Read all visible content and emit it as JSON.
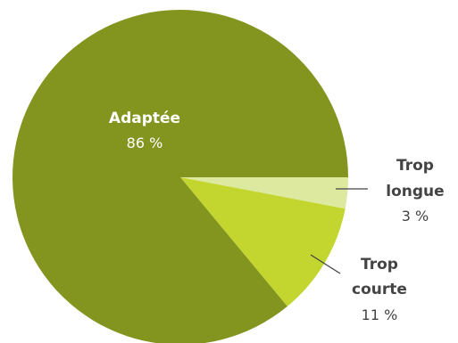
{
  "chart_data": {
    "type": "pie",
    "slices": [
      {
        "label": "Adaptée",
        "value": 86,
        "display": "86 %",
        "color": "#83951f"
      },
      {
        "label_lines": [
          "Trop",
          "longue"
        ],
        "value": 3,
        "display": "3 %",
        "color": "#dde99e"
      },
      {
        "label_lines": [
          "Trop",
          "courte"
        ],
        "value": 11,
        "display": "11 %",
        "color": "#c3d630"
      }
    ],
    "colors": {
      "inside_text": "#ffffff",
      "outside_text": "#444444",
      "leader_line": "#444444"
    }
  }
}
